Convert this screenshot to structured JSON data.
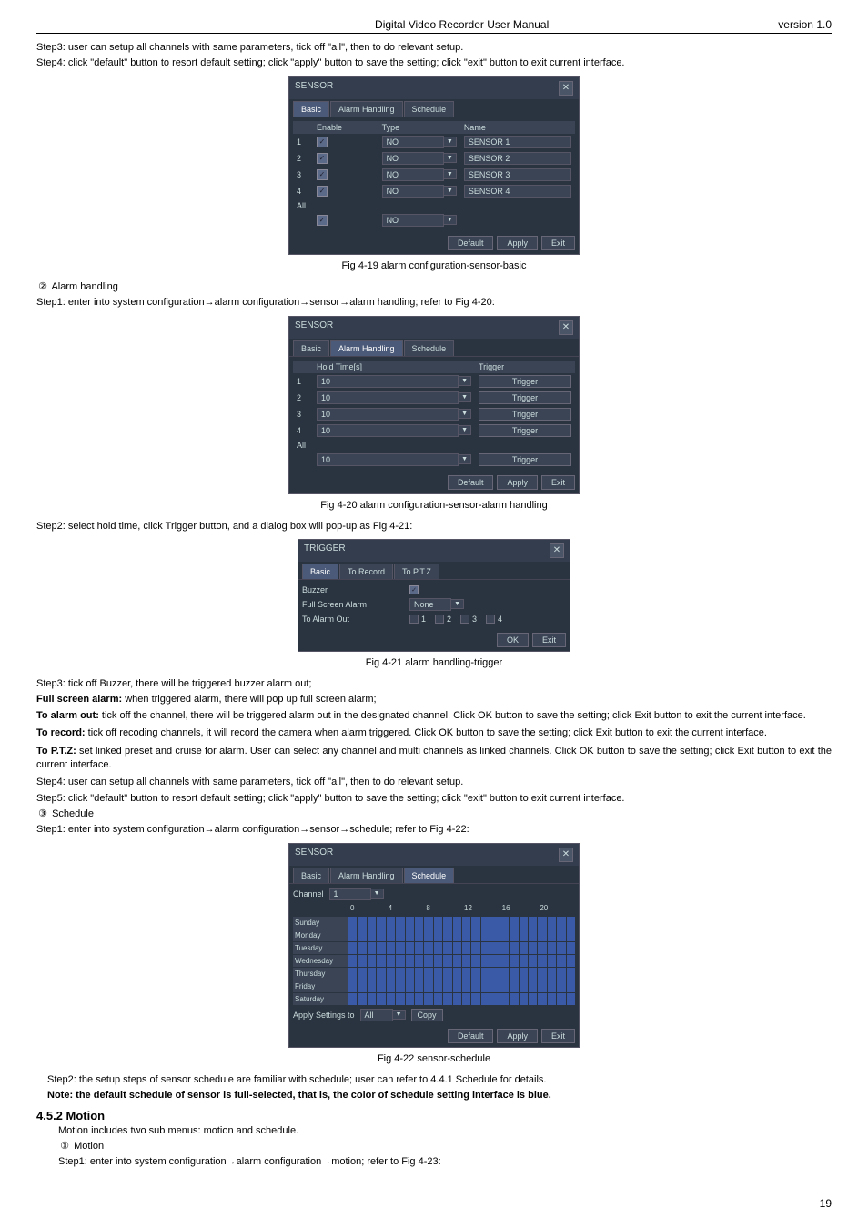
{
  "header": {
    "title": "Digital Video Recorder User Manual",
    "version": "version 1.0"
  },
  "intro": {
    "step3": "Step3: user can setup all channels with same parameters, tick off \"all\", then to do relevant setup.",
    "step4": "Step4: click \"default\" button to resort default setting; click \"apply\" button to save the setting; click \"exit\" button to exit current interface."
  },
  "fig19": {
    "title": "SENSOR",
    "tabs": [
      "Basic",
      "Alarm Handling",
      "Schedule"
    ],
    "active_tab": 0,
    "cols": [
      "",
      "Enable",
      "Type",
      "Name"
    ],
    "rows": [
      {
        "n": "1",
        "enable": true,
        "type": "NO",
        "name": "SENSOR 1"
      },
      {
        "n": "2",
        "enable": true,
        "type": "NO",
        "name": "SENSOR 2"
      },
      {
        "n": "3",
        "enable": true,
        "type": "NO",
        "name": "SENSOR 3"
      },
      {
        "n": "4",
        "enable": true,
        "type": "NO",
        "name": "SENSOR 4"
      }
    ],
    "all_row": {
      "label": "All",
      "enable": true,
      "type": "NO"
    },
    "buttons": [
      "Default",
      "Apply",
      "Exit"
    ],
    "caption": "Fig 4-19 alarm configuration-sensor-basic"
  },
  "alarm_hdr": {
    "num": "②",
    "label": "Alarm handling"
  },
  "alarm_step1": "Step1: enter into system configuration→alarm configuration→sensor→alarm handling; refer to Fig 4-20:",
  "fig20": {
    "title": "SENSOR",
    "tabs": [
      "Basic",
      "Alarm Handling",
      "Schedule"
    ],
    "active_tab": 1,
    "cols": [
      "",
      "Hold Time[s]",
      "Trigger"
    ],
    "rows": [
      {
        "n": "1",
        "hold": "10",
        "trigger": "Trigger"
      },
      {
        "n": "2",
        "hold": "10",
        "trigger": "Trigger"
      },
      {
        "n": "3",
        "hold": "10",
        "trigger": "Trigger"
      },
      {
        "n": "4",
        "hold": "10",
        "trigger": "Trigger"
      }
    ],
    "all_row": {
      "label": "All",
      "hold": "10",
      "trigger": "Trigger"
    },
    "buttons": [
      "Default",
      "Apply",
      "Exit"
    ],
    "caption": "Fig 4-20 alarm configuration-sensor-alarm handling"
  },
  "step2_hold": "Step2: select hold time, click Trigger button, and a dialog box will pop-up as Fig 4-21:",
  "fig21": {
    "title": "TRIGGER",
    "tabs": [
      "Basic",
      "To Record",
      "To P.T.Z"
    ],
    "active_tab": 0,
    "buzzer": {
      "label": "Buzzer",
      "checked": true
    },
    "fullscreen": {
      "label": "Full Screen Alarm",
      "value": "None"
    },
    "alarm_out": {
      "label": "To Alarm Out",
      "opts": [
        "1",
        "2",
        "3",
        "4"
      ]
    },
    "buttons": [
      "OK",
      "Exit"
    ],
    "caption": "Fig 4-21 alarm handling-trigger"
  },
  "notes": {
    "n1": "Step3: tick off Buzzer, there will be triggered buzzer alarm out;",
    "n2a": "Full screen alarm:",
    "n2b": " when triggered alarm, there will pop up full screen alarm;",
    "n3a": "To alarm out:",
    "n3b": " tick off the channel, there will be triggered alarm out in the designated channel. Click OK button to save the setting; click Exit button to exit the current interface.",
    "n4a": "To record:",
    "n4b": " tick off recoding channels, it will record the camera when alarm triggered. Click OK button to save the setting; click Exit button to exit the current interface.",
    "n5a": "To P.T.Z:",
    "n5b": " set linked preset and cruise for alarm. User can select any channel and multi channels as linked channels. Click OK button to save the setting; click Exit button to exit the current interface.",
    "n6": "Step4: user can setup all channels with same parameters, tick off \"all\", then to do relevant setup.",
    "n7": "Step5: click \"default\" button to resort default setting; click \"apply\" button to save the setting; click \"exit\" button to exit current interface."
  },
  "sched_hdr": {
    "num": "③",
    "label": "Schedule"
  },
  "sched_step1": "Step1: enter into system configuration→alarm configuration→sensor→schedule; refer to Fig 4-22:",
  "fig22": {
    "title": "SENSOR",
    "tabs": [
      "Basic",
      "Alarm Handling",
      "Schedule"
    ],
    "active_tab": 2,
    "channel_label": "Channel",
    "channel_val": "1",
    "hours": [
      "0",
      "4",
      "8",
      "12",
      "16",
      "20"
    ],
    "days": [
      "Sunday",
      "Monday",
      "Tuesday",
      "Wednesday",
      "Thursday",
      "Friday",
      "Saturday"
    ],
    "apply": {
      "label": "Apply Settings to",
      "val": "All",
      "copy": "Copy"
    },
    "buttons": [
      "Default",
      "Apply",
      "Exit"
    ],
    "caption": "Fig 4-22 sensor-schedule"
  },
  "sched_step2": "Step2: the setup steps of sensor schedule are familiar with schedule; user can refer to 4.4.1 Schedule for details.",
  "sched_note": "Note: the default schedule of sensor is full-selected, that is, the color of schedule setting interface is blue.",
  "motion": {
    "title": "4.5.2 Motion",
    "line1": "Motion includes two sub menus: motion and schedule.",
    "num": "①",
    "label": "Motion",
    "step1": "Step1: enter into system configuration→alarm configuration→motion; refer to Fig 4-23:"
  },
  "page_num": "19"
}
